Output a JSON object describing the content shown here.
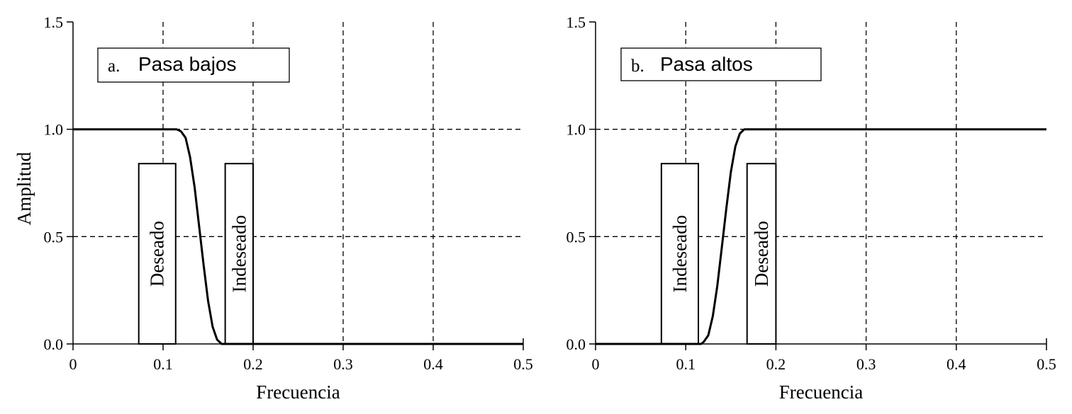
{
  "chart_data": [
    {
      "type": "line",
      "title_prefix": "a.",
      "title": "Pasa bajos",
      "xlabel": "Frecuencia",
      "ylabel": "Amplitud",
      "xlim": [
        0,
        0.5
      ],
      "ylim": [
        0,
        1.5
      ],
      "xticks": [
        0,
        0.1,
        0.2,
        0.3,
        0.4,
        0.5
      ],
      "xtick_labels": [
        "0",
        "0.1",
        "0.2",
        "0.3",
        "0.4",
        "0.5"
      ],
      "yticks": [
        0,
        0.5,
        1.0,
        1.5
      ],
      "ytick_labels": [
        "0.0",
        "0.5",
        "1.0",
        "1.5"
      ],
      "grid": true,
      "series": [
        {
          "x": [
            0,
            0.05,
            0.1,
            0.115,
            0.12,
            0.125,
            0.13,
            0.135,
            0.14,
            0.145,
            0.15,
            0.155,
            0.16,
            0.165,
            0.17,
            0.2,
            0.3,
            0.4,
            0.5
          ],
          "y": [
            1.0,
            1.0,
            1.0,
            1.0,
            0.99,
            0.96,
            0.87,
            0.73,
            0.55,
            0.37,
            0.2,
            0.08,
            0.02,
            0.0,
            0.0,
            0.0,
            0.0,
            0.0,
            0.0
          ]
        }
      ],
      "bands": [
        {
          "label": "Deseado",
          "x0": 0.073,
          "x1": 0.114,
          "y0": 0,
          "y1": 0.84
        },
        {
          "label": "Indeseado",
          "x0": 0.169,
          "x1": 0.2,
          "y0": 0,
          "y1": 0.84
        }
      ]
    },
    {
      "type": "line",
      "title_prefix": "b.",
      "title": "Pasa altos",
      "xlabel": "Frecuencia",
      "ylabel": "",
      "xlim": [
        0,
        0.5
      ],
      "ylim": [
        0,
        1.5
      ],
      "xticks": [
        0,
        0.1,
        0.2,
        0.3,
        0.4,
        0.5
      ],
      "xtick_labels": [
        "0",
        "0.1",
        "0.2",
        "0.3",
        "0.4",
        "0.5"
      ],
      "yticks": [
        0,
        0.5,
        1.0,
        1.5
      ],
      "ytick_labels": [
        "0.0",
        "0.5",
        "1.0",
        "1.5"
      ],
      "grid": true,
      "series": [
        {
          "x": [
            0,
            0.05,
            0.1,
            0.117,
            0.12,
            0.125,
            0.13,
            0.135,
            0.14,
            0.145,
            0.15,
            0.155,
            0.16,
            0.165,
            0.17,
            0.2,
            0.3,
            0.4,
            0.5
          ],
          "y": [
            0.0,
            0.0,
            0.0,
            0.0,
            0.01,
            0.04,
            0.13,
            0.27,
            0.45,
            0.63,
            0.8,
            0.92,
            0.98,
            1.0,
            1.0,
            1.0,
            1.0,
            1.0,
            1.0
          ]
        }
      ],
      "bands": [
        {
          "label": "Indeseado",
          "x0": 0.073,
          "x1": 0.114,
          "y0": 0,
          "y1": 0.84
        },
        {
          "label": "Deseado",
          "x0": 0.168,
          "x1": 0.2,
          "y0": 0,
          "y1": 0.84
        }
      ]
    }
  ]
}
